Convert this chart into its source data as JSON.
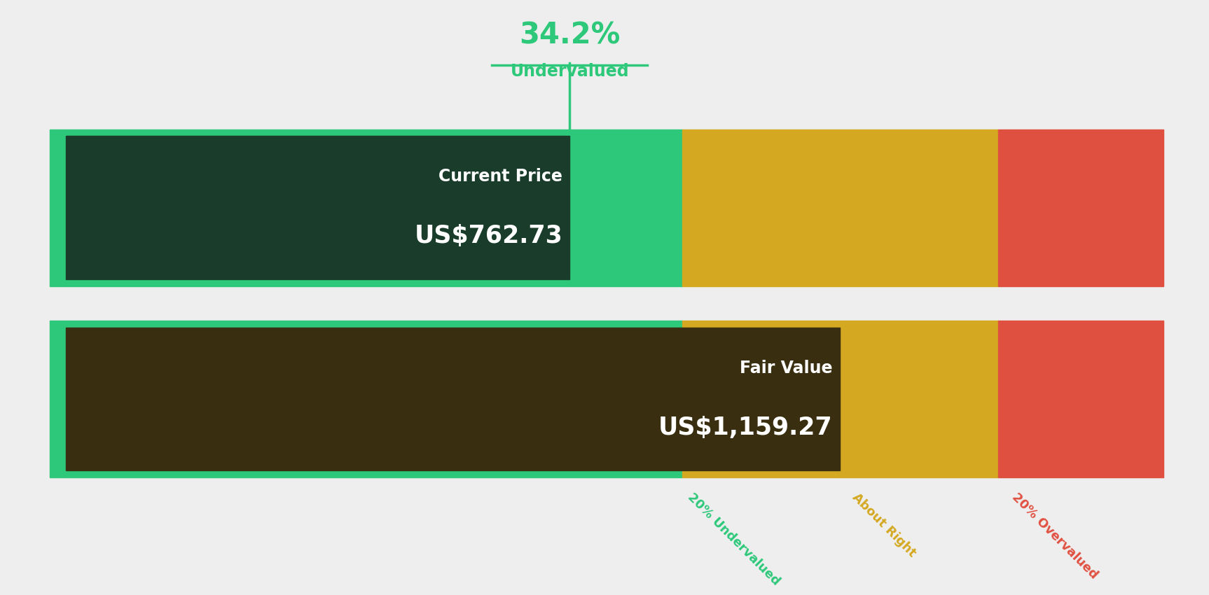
{
  "background_color": "#eeeeee",
  "current_price": 762.73,
  "fair_value": 1159.27,
  "undervalued_pct": "34.2%",
  "undervalued_label": "Undervalued",
  "current_price_label": "Current Price",
  "current_price_text": "US$762.73",
  "fair_value_label": "Fair Value",
  "fair_value_text": "US$1,159.27",
  "zone_undervalued_label": "20% Undervalued",
  "zone_about_right_label": "About Right",
  "zone_overvalued_label": "20% Overvalued",
  "color_bright_green": "#2dc87a",
  "color_dark_green_overlay": "#1a3d2b",
  "color_dark_brown_overlay": "#3a2e10",
  "color_yellow": "#d4a820",
  "color_red": "#e05040",
  "color_white": "#ffffff",
  "color_green_text": "#2dc87a",
  "color_label_undervalued": "#2dc87a",
  "color_label_about_right": "#d4a820",
  "color_label_overvalued": "#e05040"
}
